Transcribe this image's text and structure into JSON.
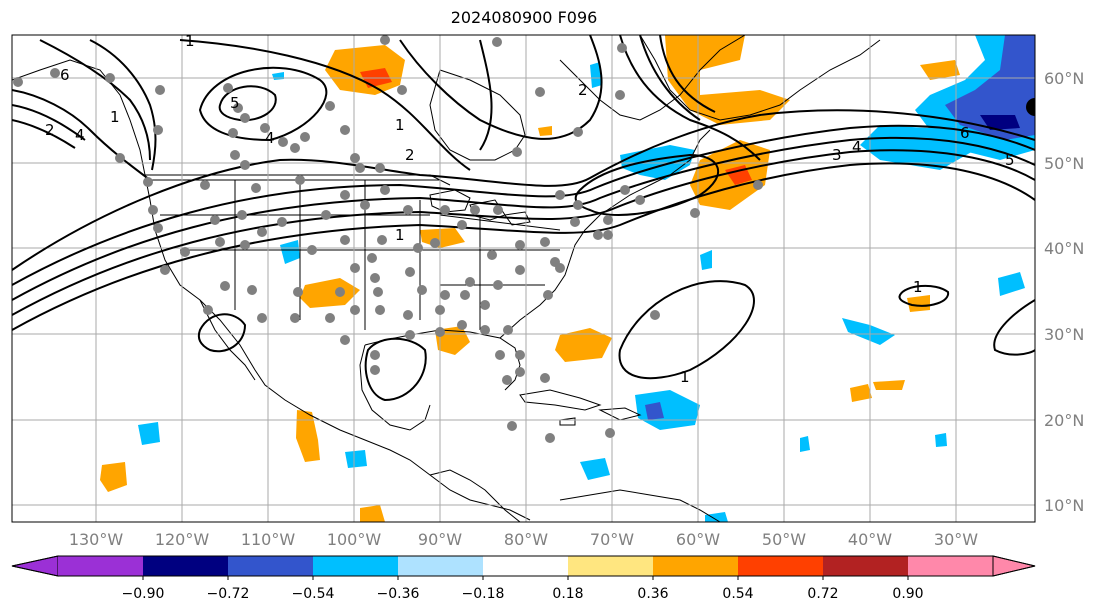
{
  "title": "2024080900 F096",
  "lon_labels": [
    "130°W",
    "120°W",
    "110°W",
    "100°W",
    "90°W",
    "80°W",
    "70°W",
    "60°W",
    "50°W",
    "40°W",
    "30°W"
  ],
  "lat_labels": [
    "60°N",
    "50°N",
    "40°N",
    "30°N",
    "20°N",
    "10°N"
  ],
  "colorbar": {
    "tick_labels": [
      "−0.90",
      "−0.72",
      "−0.54",
      "−0.36",
      "−0.18",
      "0.18",
      "0.36",
      "0.54",
      "0.72",
      "0.90"
    ],
    "colors": [
      "#9b30d6",
      "#000080",
      "#3355cc",
      "#00bfff",
      "#aee2ff",
      "#ffffff",
      "#ffe680",
      "#ffa500",
      "#ff4000",
      "#b22222",
      "#ff88aa"
    ]
  },
  "contour_labels": [
    "1",
    "2",
    "3",
    "4",
    "5",
    "6",
    "1",
    "2",
    "1",
    "1",
    "1",
    "2",
    "3",
    "4",
    "5",
    "6",
    "1"
  ],
  "colors": {
    "land_outline": "#000000",
    "grid": "#aaaaaa",
    "dots": "#808080"
  }
}
